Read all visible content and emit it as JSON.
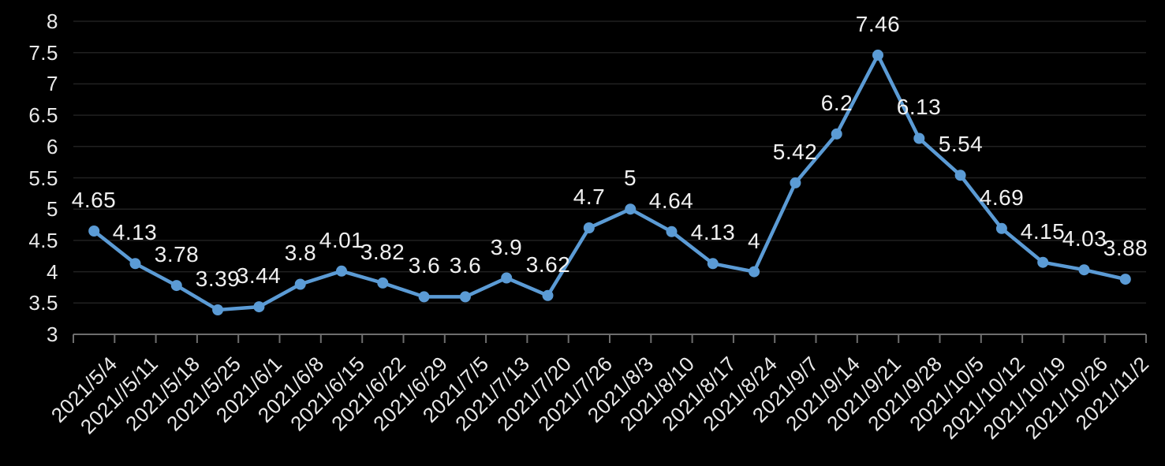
{
  "chart_data": {
    "type": "line",
    "title": "",
    "legend": "none",
    "grid": true,
    "categories": [
      "2021/5/4",
      "2021//5/11",
      "2021/5/18",
      "2021/5/25",
      "2021/6/1",
      "2021/6/8",
      "2021/6/15",
      "2021/6/22",
      "2021/6/29",
      "2021/7/5",
      "2021/7/13",
      "2021/7/20",
      "2021/7/26",
      "2021/8/3",
      "2021/8/10",
      "2021/8/17",
      "2021/8/24",
      "2021/9/7",
      "2021/9/14",
      "2021/9/21",
      "2021/9/28",
      "2021/10/5",
      "2021/10/12",
      "2021/10/19",
      "2021/10/26",
      "2021/11/2"
    ],
    "values": [
      4.65,
      4.13,
      3.78,
      3.39,
      3.44,
      3.8,
      4.01,
      3.82,
      3.6,
      3.6,
      3.9,
      3.62,
      4.7,
      5,
      4.64,
      4.13,
      4,
      5.42,
      6.2,
      7.46,
      6.13,
      5.54,
      4.69,
      4.15,
      4.03,
      3.88
    ],
    "point_labels": [
      "4.65",
      "4.13",
      "3.78",
      "3.39",
      "3.44",
      "3.8",
      "4.01",
      "3.82",
      "3.6",
      "3.6",
      "3.9",
      "3.62",
      "4.7",
      "5",
      "4.64",
      "4.13",
      "4",
      "5.42",
      "6.2",
      "7.46",
      "6.13",
      "5.54",
      "4.69",
      "4.15",
      "4.03",
      "3.88"
    ],
    "xlabel": "",
    "ylabel": "",
    "ylim": [
      3,
      8
    ],
    "ytick_step": 0.5,
    "ytick_labels": [
      "3",
      "3.5",
      "4",
      "4.5",
      "5",
      "5.5",
      "6",
      "6.5",
      "7",
      "7.5",
      "8"
    ],
    "colors": {
      "background": "#000000",
      "series_line": "#5b9bd5",
      "marker_fill": "#5b9bd5",
      "gridline": "#212121",
      "axis_line": "#6e6e6e",
      "tick": "#6e6e6e",
      "data_label_text": "#f0f0f0",
      "axis_label_text": "#e9e9e9"
    }
  }
}
